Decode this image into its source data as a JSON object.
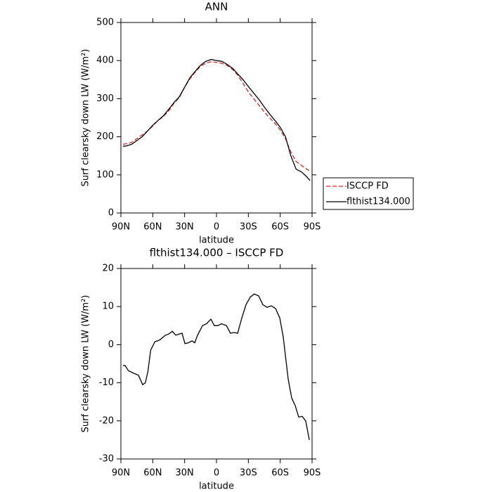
{
  "chart_data": [
    {
      "type": "line",
      "title": "ANN",
      "xlabel": "latitude",
      "ylabel": "Surf clearsky down LW (W/m²)",
      "x": [
        88,
        85,
        80,
        75,
        70,
        65,
        60,
        55,
        50,
        45,
        40,
        35,
        30,
        25,
        20,
        15,
        10,
        5,
        0,
        -5,
        -10,
        -15,
        -20,
        -25,
        -30,
        -35,
        -40,
        -45,
        -50,
        -55,
        -60,
        -65,
        -70,
        -75,
        -80,
        -85,
        -88
      ],
      "series": [
        {
          "name": "ISCCP FD",
          "color": "#e02020",
          "dash": true,
          "values": [
            180,
            182,
            185,
            195,
            205,
            215,
            228,
            243,
            253,
            268,
            288,
            303,
            330,
            352,
            370,
            385,
            393,
            397,
            395,
            393,
            387,
            377,
            362,
            340,
            318,
            300,
            283,
            265,
            250,
            235,
            218,
            195,
            160,
            135,
            125,
            115,
            110
          ]
        },
        {
          "name": "flthist134.000",
          "color": "#000000",
          "dash": false,
          "values": [
            175,
            176,
            180,
            190,
            200,
            215,
            230,
            243,
            255,
            272,
            290,
            305,
            330,
            355,
            372,
            388,
            398,
            403,
            400,
            398,
            390,
            380,
            365,
            350,
            332,
            315,
            298,
            278,
            260,
            243,
            225,
            200,
            150,
            115,
            108,
            95,
            85
          ]
        }
      ],
      "xlim": [
        90,
        -90
      ],
      "xticks": [
        {
          "value": 90,
          "label": "90N"
        },
        {
          "value": 60,
          "label": "60N"
        },
        {
          "value": 30,
          "label": "30N"
        },
        0,
        {
          "value": -30,
          "label": "30S"
        },
        {
          "value": -60,
          "label": "60S"
        },
        {
          "value": -90,
          "label": "90S"
        }
      ],
      "ylim": [
        0,
        500
      ],
      "yticks": [
        0,
        100,
        200,
        300,
        400,
        500
      ],
      "legend": "right"
    },
    {
      "type": "line",
      "title": "flthist134.000 – ISCCP FD",
      "xlabel": "latitude",
      "ylabel": "Surf clearsky down LW (W/m²)",
      "x": [
        88,
        86,
        83,
        78,
        73.5,
        69.5,
        67,
        64.5,
        62,
        58,
        53.6,
        48,
        45,
        41.5,
        38.4,
        35,
        32.4,
        29.7,
        26.5,
        23,
        20.5,
        17.8,
        13.2,
        9.3,
        5.3,
        2,
        -1.3,
        -4.6,
        -9.3,
        -13.2,
        -16.5,
        -19.9,
        -23.8,
        -27.8,
        -31.8,
        -35.7,
        -39.7,
        -43.7,
        -47.7,
        -51.6,
        -55.6,
        -59.6,
        -62.9,
        -67.5,
        -70.8,
        -74.1,
        -77.4,
        -80.7,
        -84,
        -87.4
      ],
      "series": [
        {
          "color": "#000000",
          "dash": false,
          "values": [
            -5.5,
            -5.5,
            -6.8,
            -7.5,
            -8,
            -10.5,
            -10,
            -7,
            -1.5,
            0.8,
            1.2,
            2.5,
            2.8,
            3.5,
            2.5,
            2.8,
            3,
            0.3,
            0.5,
            1,
            0.5,
            2.5,
            5,
            5.5,
            6.7,
            5,
            5,
            5.5,
            5,
            3,
            3.2,
            3,
            7,
            10.5,
            12.5,
            13.3,
            12.8,
            10.5,
            9.8,
            10.2,
            9.5,
            7,
            2,
            -9,
            -14,
            -16,
            -19,
            -18.8,
            -20,
            -25
          ]
        }
      ],
      "xlim": [
        90,
        -90
      ],
      "xticks": [
        {
          "value": 90,
          "label": "90N"
        },
        {
          "value": 60,
          "label": "60N"
        },
        {
          "value": 30,
          "label": "30N"
        },
        0,
        {
          "value": -30,
          "label": "30S"
        },
        {
          "value": -60,
          "label": "60S"
        },
        {
          "value": -90,
          "label": "90S"
        }
      ],
      "ylim": [
        -30,
        20
      ],
      "yticks": [
        -30,
        -20,
        -10,
        0,
        10,
        20
      ]
    }
  ]
}
